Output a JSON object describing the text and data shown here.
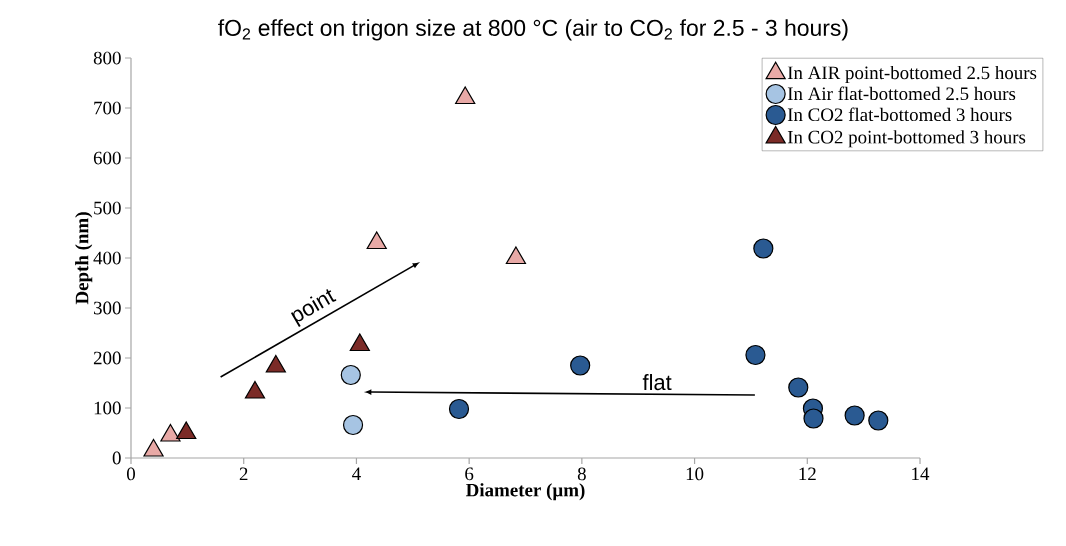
{
  "chart_data": {
    "type": "scatter",
    "title": "fO$_{2}$ effect on trigon size at 800 °C (air to CO$_{2}$ for 2.5 - 3 hours)",
    "xlabel": "Diameter (µm)",
    "ylabel": "Depth (nm)",
    "xlim": [
      0,
      14
    ],
    "ylim": [
      0,
      800
    ],
    "xticks": [
      0,
      2,
      4,
      6,
      8,
      10,
      12,
      14
    ],
    "yticks": [
      0,
      100,
      200,
      300,
      400,
      500,
      600,
      700,
      800
    ],
    "legend": "top right",
    "annotations": [
      "point",
      "flat"
    ],
    "series": [
      {
        "name": "In AIR point-bottomed 2.5 hours",
        "color": "#e8a9a6",
        "marker": "triangle",
        "x": [
          0.4,
          0.7,
          5.93,
          4.36,
          6.83
        ],
        "values": [
          15,
          45,
          720,
          430,
          400
        ]
      },
      {
        "name": "In Air flat-bottomed 2.5 hours",
        "color": "#a6c4e3",
        "marker": "circle",
        "x": [
          3.9,
          3.94
        ],
        "values": [
          166,
          66
        ]
      },
      {
        "name": "In CO2 flat-bottomed 3 hours",
        "color": "#2a5a92",
        "marker": "circle",
        "x": [
          5.82,
          7.97,
          11.22,
          11.08,
          11.84,
          12.1,
          12.11,
          12.84,
          13.26
        ],
        "values": [
          98,
          185,
          419,
          206,
          141,
          99,
          79,
          85,
          75
        ]
      },
      {
        "name": "In CO2 point-bottomed 3 hours",
        "color": "#7b2b27",
        "marker": "triangle",
        "x": [
          0.98,
          2.2,
          2.57,
          4.06
        ],
        "values": [
          50,
          131,
          183,
          226
        ]
      }
    ]
  }
}
